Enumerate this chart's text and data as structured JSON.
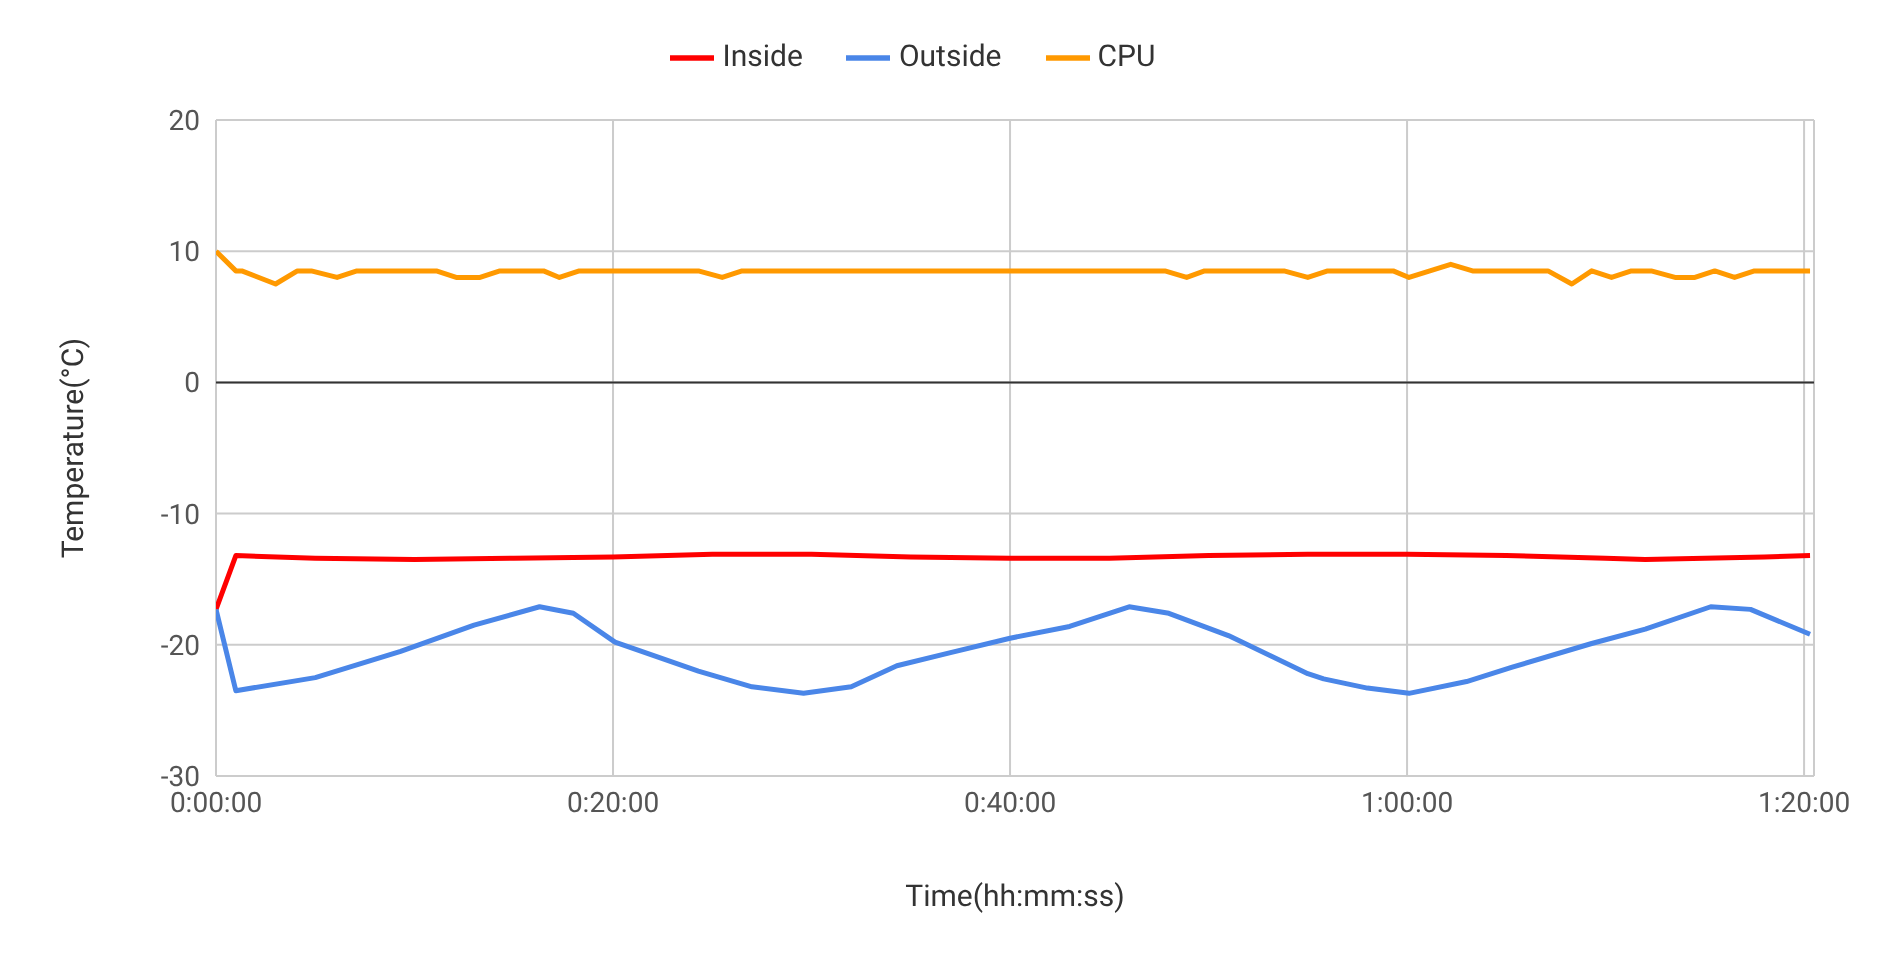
{
  "chart_data": {
    "type": "line",
    "xlabel": "Time(hh:mm:ss)",
    "ylabel": "Temperature(°C)",
    "xlim": [
      0,
      80.5
    ],
    "xticks": [
      {
        "value": 0,
        "label": "0:00:00"
      },
      {
        "value": 20,
        "label": "0:20:00"
      },
      {
        "value": 40,
        "label": "0:40:00"
      },
      {
        "value": 60,
        "label": "1:00:00"
      },
      {
        "value": 80,
        "label": "1:20:00"
      }
    ],
    "ylim": [
      -30,
      20
    ],
    "yticks": [
      -30,
      -20,
      -10,
      0,
      10,
      20
    ],
    "grid": true,
    "legend": "top",
    "marker": "none",
    "line_style": "solid",
    "ref_lines": [
      {
        "axis": "y",
        "value": 0,
        "color": "#333333"
      }
    ],
    "series": [
      {
        "name": "Inside",
        "color": "#ff0000",
        "x": [
          0,
          1,
          5,
          10,
          15,
          20,
          25,
          30,
          35,
          40,
          45,
          50,
          55,
          60,
          65,
          70,
          72,
          75,
          78,
          80.3
        ],
        "values": [
          -17.3,
          -13.2,
          -13.4,
          -13.5,
          -13.4,
          -13.3,
          -13.1,
          -13.1,
          -13.3,
          -13.4,
          -13.4,
          -13.2,
          -13.1,
          -13.1,
          -13.2,
          -13.4,
          -13.5,
          -13.4,
          -13.3,
          -13.2
        ]
      },
      {
        "name": "Outside",
        "color": "#4a86e8",
        "x": [
          0,
          1,
          5,
          9.3,
          13,
          16.3,
          18,
          20.1,
          24.3,
          27,
          29.6,
          32,
          34.3,
          37,
          40,
          43,
          46,
          48,
          51,
          55,
          55.8,
          58,
          60.1,
          63,
          65.3,
          69.3,
          72,
          75.3,
          77.3,
          80.3
        ],
        "values": [
          -17.3,
          -23.5,
          -22.5,
          -20.5,
          -18.5,
          -17.1,
          -17.6,
          -19.8,
          -22,
          -23.2,
          -23.7,
          -23.2,
          -21.6,
          -20.6,
          -19.5,
          -18.6,
          -17.1,
          -17.6,
          -19.3,
          -22.2,
          -22.6,
          -23.3,
          -23.7,
          -22.8,
          -21.7,
          -19.9,
          -18.8,
          -17.1,
          -17.3,
          -19.2
        ]
      },
      {
        "name": "CPU",
        "color": "#ff9900",
        "x": [
          0,
          1,
          1.3,
          3,
          4.1,
          4.8,
          6.1,
          7.1,
          11.1,
          12.1,
          13.3,
          14.3,
          16.5,
          17.3,
          18.3,
          24.3,
          25.5,
          26.5,
          47.8,
          48.9,
          49.8,
          53.8,
          55,
          56,
          59.3,
          60.1,
          62.2,
          63.3,
          67.1,
          68.3,
          69.3,
          70.3,
          71.3,
          72.3,
          73.5,
          74.5,
          75.5,
          76.5,
          77.5,
          80.3
        ],
        "values": [
          10,
          8.5,
          8.5,
          7.5,
          8.5,
          8.5,
          8,
          8.5,
          8.5,
          8,
          8,
          8.5,
          8.5,
          8,
          8.5,
          8.5,
          8,
          8.5,
          8.5,
          8,
          8.5,
          8.5,
          8,
          8.5,
          8.5,
          8,
          9,
          8.5,
          8.5,
          7.5,
          8.5,
          8,
          8.5,
          8.5,
          8,
          8,
          8.5,
          8,
          8.5,
          8.5
        ]
      }
    ]
  }
}
